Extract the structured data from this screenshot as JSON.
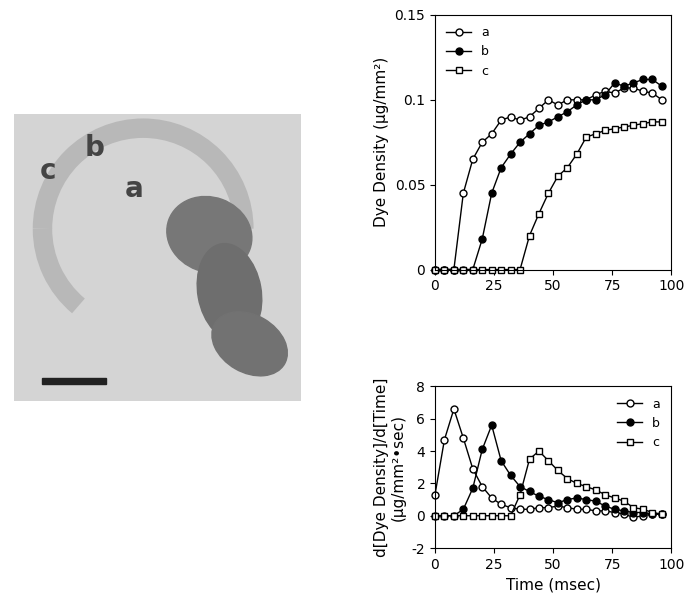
{
  "image": {
    "labels": [
      "a",
      "b",
      "c"
    ]
  },
  "chart_data": [
    {
      "type": "line",
      "ylabel": "Dye Density (μg/mm²)",
      "x": [
        0,
        4,
        8,
        12,
        16,
        20,
        24,
        28,
        32,
        36,
        40,
        44,
        48,
        52,
        56,
        60,
        64,
        68,
        72,
        76,
        80,
        84,
        88,
        92,
        96
      ],
      "xlim": [
        0,
        100
      ],
      "xticks": [
        0,
        25,
        50,
        75,
        100
      ],
      "ylim": [
        0,
        0.15
      ],
      "yticks": [
        0,
        0.05,
        0.1,
        0.15
      ],
      "legend": "upper left",
      "series": [
        {
          "name": "a",
          "color": "#000000",
          "marker": "open_circle",
          "line_style": "solid",
          "values": [
            0,
            0,
            0,
            0.045,
            0.065,
            0.075,
            0.08,
            0.088,
            0.09,
            0.088,
            0.09,
            0.095,
            0.1,
            0.097,
            0.1,
            0.1,
            0.1,
            0.103,
            0.105,
            0.104,
            0.107,
            0.107,
            0.105,
            0.104,
            0.1
          ]
        },
        {
          "name": "b",
          "color": "#000000",
          "marker": "filled_circle",
          "line_style": "solid",
          "values": [
            0,
            0,
            0,
            0,
            0,
            0.018,
            0.045,
            0.06,
            0.068,
            0.075,
            0.08,
            0.085,
            0.087,
            0.09,
            0.093,
            0.097,
            0.1,
            0.1,
            0.103,
            0.11,
            0.108,
            0.11,
            0.112,
            0.112,
            0.108
          ]
        },
        {
          "name": "c",
          "color": "#000000",
          "marker": "open_square",
          "line_style": "solid",
          "values": [
            0,
            0,
            0,
            0,
            0,
            0,
            0,
            0,
            0,
            0,
            0.02,
            0.033,
            0.045,
            0.055,
            0.06,
            0.068,
            0.078,
            0.08,
            0.082,
            0.083,
            0.084,
            0.085,
            0.086,
            0.087,
            0.087
          ]
        }
      ]
    },
    {
      "type": "line",
      "xlabel": "Time (msec)",
      "ylabel": "d[Dye Density]/d[Time]\n(μg/mm²•sec)",
      "x": [
        0,
        4,
        8,
        12,
        16,
        20,
        24,
        28,
        32,
        36,
        40,
        44,
        48,
        52,
        56,
        60,
        64,
        68,
        72,
        76,
        80,
        84,
        88,
        92,
        96
      ],
      "xlim": [
        0,
        100
      ],
      "xticks": [
        0,
        25,
        50,
        75,
        100
      ],
      "ylim": [
        -2,
        8
      ],
      "yticks": [
        -2,
        0,
        2,
        4,
        6,
        8
      ],
      "legend": "upper right",
      "series": [
        {
          "name": "a",
          "color": "#000000",
          "marker": "open_circle",
          "line_style": "solid",
          "values": [
            1.3,
            4.7,
            6.6,
            4.8,
            2.9,
            1.8,
            1.1,
            0.7,
            0.5,
            0.4,
            0.4,
            0.5,
            0.5,
            0.6,
            0.5,
            0.4,
            0.4,
            0.3,
            0.3,
            0.2,
            0.1,
            -0.1,
            0,
            0.1,
            0.1
          ]
        },
        {
          "name": "b",
          "color": "#000000",
          "marker": "filled_circle",
          "line_style": "solid",
          "values": [
            0,
            0,
            0,
            0.4,
            1.7,
            4.1,
            5.6,
            3.4,
            2.5,
            1.8,
            1.5,
            1.2,
            1.0,
            0.8,
            1.0,
            1.1,
            1.0,
            0.9,
            0.6,
            0.4,
            0.3,
            0.2,
            0.2,
            0.1,
            0.1
          ]
        },
        {
          "name": "c",
          "color": "#000000",
          "marker": "open_square",
          "line_style": "solid",
          "values": [
            0,
            0,
            0,
            0,
            0,
            0,
            0,
            0,
            0,
            1.3,
            3.5,
            4.0,
            3.4,
            2.8,
            2.3,
            2.0,
            1.8,
            1.6,
            1.3,
            1.1,
            0.9,
            0.5,
            0.4,
            0.2,
            0.1
          ]
        }
      ]
    }
  ]
}
